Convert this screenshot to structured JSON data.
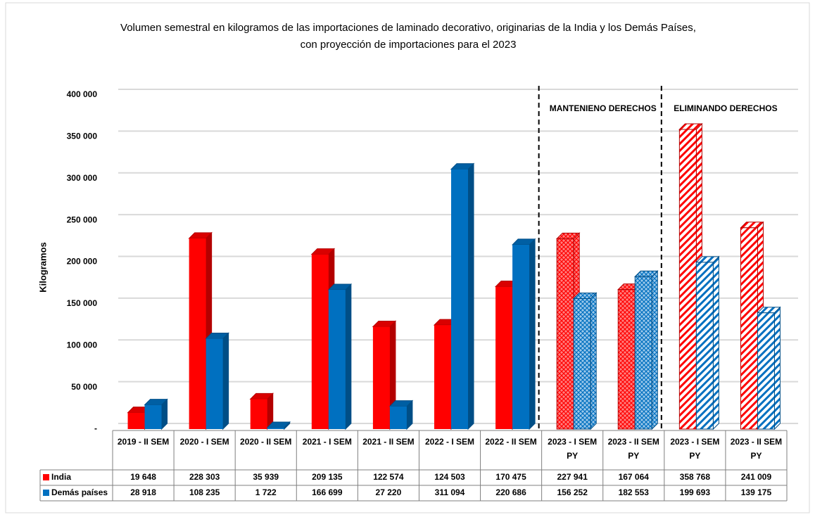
{
  "chart_data": {
    "type": "bar",
    "title": "Volumen semestral en kilogramos de las importaciones de laminado decorativo, originarias de la India y los Demás Países, con proyección de importaciones para el 2023",
    "ylabel": "Kilogramos",
    "categories": [
      "2019 - II SEM",
      "2020 - I SEM",
      "2020 - II SEM",
      "2021 - I SEM",
      "2021 - II SEM",
      "2022 - I SEM",
      "2022 - II SEM",
      "2023 - I SEM PY",
      "2023 - II SEM PY",
      "2023 - I SEM PY",
      "2023 - II SEM PY"
    ],
    "fill_style": [
      "solid",
      "solid",
      "solid",
      "solid",
      "solid",
      "solid",
      "solid",
      "crosshatch",
      "crosshatch",
      "diagonal",
      "diagonal"
    ],
    "series": [
      {
        "name": "India",
        "color": "#ff0000",
        "values": [
          19648,
          228303,
          35939,
          209135,
          122574,
          124503,
          170475,
          227941,
          167064,
          358768,
          241009
        ],
        "value_labels": [
          "19 648",
          "228 303",
          "35 939",
          "209 135",
          "122 574",
          "124 503",
          "170 475",
          "227 941",
          "167 064",
          "358 768",
          "241 009"
        ]
      },
      {
        "name": "Demás países",
        "color": "#0070c0",
        "values": [
          28918,
          108235,
          1722,
          166699,
          27220,
          311094,
          220686,
          156252,
          182553,
          199693,
          139175
        ],
        "value_labels": [
          "28 918",
          "108 235",
          "1 722",
          "166 699",
          "27 220",
          "311 094",
          "220 686",
          "156 252",
          "182 553",
          "199 693",
          "139 175"
        ]
      }
    ],
    "annotations": [
      {
        "text": "MANTENIENO  DERECHOS",
        "from": 7,
        "to": 9
      },
      {
        "text": "ELIMINANDO DERECHOS",
        "from": 9,
        "to": 11
      }
    ],
    "ylim": [
      0,
      400000
    ],
    "yticks": [
      {
        "value": 0,
        "label": "-"
      },
      {
        "value": 50000,
        "label": "50 000"
      },
      {
        "value": 100000,
        "label": "100 000"
      },
      {
        "value": 150000,
        "label": "150 000"
      },
      {
        "value": 200000,
        "label": "200 000"
      },
      {
        "value": 250000,
        "label": "250 000"
      },
      {
        "value": 300000,
        "label": "300 000"
      },
      {
        "value": 350000,
        "label": "350 000"
      },
      {
        "value": 400000,
        "label": "400 000"
      }
    ],
    "grid": true
  }
}
